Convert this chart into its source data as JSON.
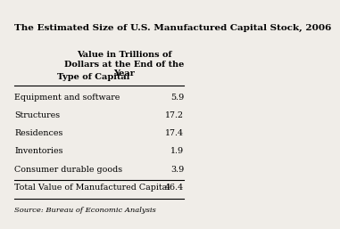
{
  "title": "The Estimated Size of U.S. Manufactured Capital Stock, 2006",
  "col_header_left": "Type of Capital",
  "col_header_right": "Value in Trillions of\nDollars at the End of the\nYear",
  "rows": [
    [
      "Equipment and software",
      "5.9"
    ],
    [
      "Structures",
      "17.2"
    ],
    [
      "Residences",
      "17.4"
    ],
    [
      "Inventories",
      "1.9"
    ],
    [
      "Consumer durable goods",
      "3.9"
    ]
  ],
  "total_row": [
    "Total Value of Manufactured Capital",
    "46.4"
  ],
  "source": "Source: Bureau of Economic Analysis",
  "bg_color": "#f0ede8",
  "title_fontsize": 7.5,
  "header_fontsize": 7.0,
  "body_fontsize": 6.8,
  "source_fontsize": 6.0
}
